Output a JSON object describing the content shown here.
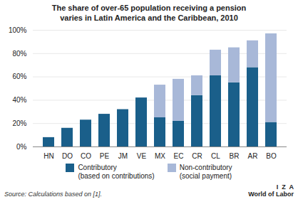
{
  "chart_data": {
    "type": "bar",
    "title": "The share of over-65 population receiving a pension",
    "subtitle": "varies in Latin America and the Caribbean, 2010",
    "categories": [
      "HN",
      "DO",
      "CO",
      "PE",
      "JM",
      "VE",
      "MX",
      "EC",
      "CR",
      "CL",
      "BR",
      "AR",
      "BO"
    ],
    "series": [
      {
        "name": "Contributory\n(based on contributions)",
        "color": "#1a5f8a",
        "values": [
          8,
          16,
          23,
          28,
          32,
          42,
          25,
          22,
          44,
          61,
          55,
          68,
          21
        ]
      },
      {
        "name": "Non-contributory\n(social payment)",
        "color": "#a8b8d8",
        "values": [
          0,
          0,
          0,
          0,
          0,
          0,
          28,
          36,
          17,
          22,
          30,
          23,
          76
        ]
      }
    ],
    "stacked": true,
    "ylim": [
      0,
      100
    ],
    "yticks": [
      {
        "value": 0,
        "label": "0%"
      },
      {
        "value": 20,
        "label": "20%"
      },
      {
        "value": 40,
        "label": "40%"
      },
      {
        "value": 60,
        "label": "60%"
      },
      {
        "value": 80,
        "label": "80%"
      },
      {
        "value": 100,
        "label": "100%"
      }
    ],
    "grid": true,
    "legend": "bottom",
    "annotations": [
      "Source: Calculations based on [1].",
      "I  Z  A",
      "World of Labor"
    ]
  }
}
